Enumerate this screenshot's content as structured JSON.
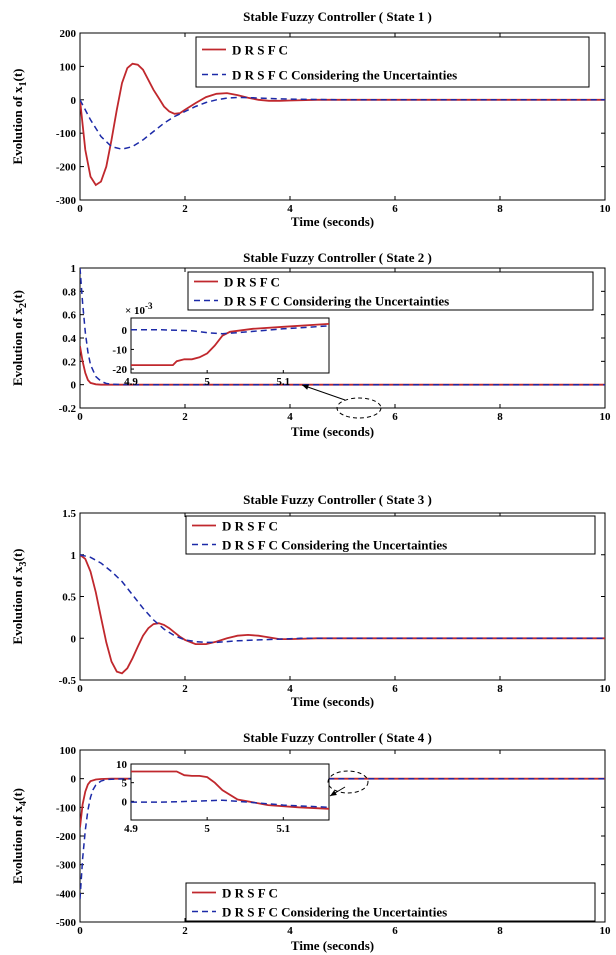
{
  "chart_data": [
    {
      "type": "line",
      "title": "Stable Fuzzy Controller ( State 1 )",
      "xlabel": "Time (seconds)",
      "ylabel": "Evolution of x",
      "ylabel_sub": "1",
      "ylabel_suffix": "(t)",
      "xlim": [
        0,
        10
      ],
      "ylim": [
        -300,
        200
      ],
      "xticks": [
        0,
        2,
        4,
        6,
        8,
        10
      ],
      "yticks": [
        -300,
        -200,
        -100,
        0,
        100,
        200
      ],
      "legend": "top-center",
      "series": [
        {
          "name": "D R S F C",
          "color": "#c0282d",
          "style": "solid",
          "x": [
            0,
            0.1,
            0.2,
            0.3,
            0.4,
            0.5,
            0.6,
            0.7,
            0.8,
            0.9,
            1.0,
            1.1,
            1.2,
            1.3,
            1.4,
            1.5,
            1.6,
            1.7,
            1.8,
            1.9,
            2.0,
            2.2,
            2.4,
            2.6,
            2.8,
            3.0,
            3.2,
            3.4,
            3.6,
            3.8,
            4.0,
            4.5,
            5,
            6,
            7,
            8,
            9,
            10
          ],
          "y": [
            0,
            -150,
            -230,
            -255,
            -245,
            -200,
            -120,
            -30,
            50,
            95,
            108,
            105,
            90,
            60,
            30,
            5,
            -20,
            -35,
            -42,
            -40,
            -30,
            -10,
            8,
            18,
            20,
            14,
            6,
            0,
            -3,
            -3,
            -2,
            0,
            0,
            0,
            0,
            0,
            0,
            0
          ]
        },
        {
          "name": "D R S F C  Considering the Uncertainties",
          "color": "#1c2aa8",
          "style": "dashed",
          "x": [
            0,
            0.2,
            0.4,
            0.6,
            0.8,
            1.0,
            1.2,
            1.4,
            1.6,
            1.8,
            2.0,
            2.2,
            2.4,
            2.6,
            2.8,
            3.0,
            3.3,
            3.6,
            4.0,
            4.5,
            5,
            6,
            7,
            8,
            9,
            10
          ],
          "y": [
            0,
            -60,
            -110,
            -140,
            -148,
            -140,
            -120,
            -95,
            -70,
            -50,
            -35,
            -20,
            -8,
            0,
            5,
            7,
            6,
            4,
            2,
            1,
            0,
            0,
            0,
            0,
            0,
            0
          ]
        }
      ]
    },
    {
      "type": "line",
      "title": "Stable Fuzzy Controller ( State 2 )",
      "xlabel": "Time (seconds)",
      "ylabel": "Evolution of x",
      "ylabel_sub": "2",
      "ylabel_suffix": "(t)",
      "xlim": [
        0,
        10
      ],
      "ylim": [
        -0.2,
        1
      ],
      "xticks": [
        0,
        2,
        4,
        6,
        8,
        10
      ],
      "yticks": [
        -0.2,
        0,
        0.2,
        0.4,
        0.6,
        0.8,
        1
      ],
      "legend": "top-center",
      "series": [
        {
          "name": "D R S F C",
          "color": "#c0282d",
          "style": "solid",
          "x": [
            0,
            0.05,
            0.1,
            0.15,
            0.2,
            0.3,
            0.4,
            0.6,
            1,
            2,
            4,
            6,
            8,
            10
          ],
          "y": [
            0.33,
            0.2,
            0.1,
            0.04,
            0.015,
            0.003,
            0,
            0,
            0,
            0,
            0,
            0,
            0,
            0
          ]
        },
        {
          "name": "D R S F C  Considering the Uncertainties",
          "color": "#1c2aa8",
          "style": "dashed",
          "x": [
            0,
            0.05,
            0.1,
            0.15,
            0.2,
            0.3,
            0.4,
            0.5,
            0.6,
            0.8,
            1,
            2,
            4,
            6,
            8,
            10
          ],
          "y": [
            1,
            0.7,
            0.45,
            0.28,
            0.17,
            0.07,
            0.03,
            0.01,
            0.004,
            0.001,
            0,
            0,
            0,
            0,
            0,
            0
          ]
        }
      ],
      "inset": {
        "exponent_label": "× 10",
        "exponent_power": "-3",
        "xlim": [
          4.9,
          5.16
        ],
        "ylim": [
          -22,
          6
        ],
        "xticks": [
          4.9,
          5,
          5.1
        ],
        "xtick_labels": [
          "4.9",
          "5",
          "5.1"
        ],
        "yticks": [
          -20,
          -10,
          0
        ],
        "series": [
          {
            "x": [
              4.9,
              4.94,
              4.955,
              4.96,
              4.97,
              4.98,
              4.99,
              5.0,
              5.01,
              5.02,
              5.03,
              5.06,
              5.1,
              5.16
            ],
            "y": [
              -18,
              -18,
              -18,
              -16,
              -15,
              -15,
              -14,
              -12,
              -8,
              -3,
              -1,
              0.5,
              1.5,
              3
            ]
          },
          {
            "x": [
              4.9,
              4.94,
              4.98,
              5.0,
              5.02,
              5.04,
              5.06,
              5.1,
              5.16
            ],
            "y": [
              0,
              0,
              -0.5,
              -1.5,
              -2,
              -1.5,
              -0.8,
              0.5,
              2
            ]
          }
        ]
      }
    },
    {
      "type": "line",
      "title": "Stable Fuzzy Controller ( State 3 )",
      "xlabel": "Time (seconds)",
      "ylabel": "Evolution of x",
      "ylabel_sub": "3",
      "ylabel_suffix": "(t)",
      "xlim": [
        0,
        10
      ],
      "ylim": [
        -0.5,
        1.5
      ],
      "xticks": [
        0,
        2,
        4,
        6,
        8,
        10
      ],
      "yticks": [
        -0.5,
        0,
        0.5,
        1,
        1.5
      ],
      "legend": "top-center",
      "series": [
        {
          "name": "D R S F C",
          "color": "#c0282d",
          "style": "solid",
          "x": [
            0,
            0.1,
            0.2,
            0.3,
            0.4,
            0.5,
            0.6,
            0.7,
            0.8,
            0.9,
            1.0,
            1.1,
            1.2,
            1.3,
            1.4,
            1.5,
            1.6,
            1.7,
            1.8,
            1.9,
            2.0,
            2.2,
            2.4,
            2.6,
            2.8,
            3.0,
            3.2,
            3.4,
            3.6,
            3.8,
            4.0,
            4.5,
            5,
            6,
            7,
            8,
            9,
            10
          ],
          "y": [
            1,
            0.95,
            0.8,
            0.55,
            0.25,
            -0.05,
            -0.28,
            -0.4,
            -0.42,
            -0.36,
            -0.24,
            -0.1,
            0.03,
            0.12,
            0.17,
            0.18,
            0.16,
            0.12,
            0.07,
            0.02,
            -0.02,
            -0.07,
            -0.07,
            -0.04,
            0,
            0.03,
            0.04,
            0.03,
            0.01,
            -0.01,
            -0.01,
            0,
            0,
            0,
            0,
            0,
            0,
            0
          ]
        },
        {
          "name": "D R S F C  Considering the Uncertainties",
          "color": "#1c2aa8",
          "style": "dashed",
          "x": [
            0,
            0.2,
            0.4,
            0.6,
            0.8,
            1.0,
            1.2,
            1.4,
            1.6,
            1.8,
            2.0,
            2.2,
            2.4,
            2.6,
            2.8,
            3.0,
            3.4,
            3.8,
            4.2,
            4.6,
            5,
            6,
            7,
            8,
            9,
            10
          ],
          "y": [
            1,
            0.97,
            0.9,
            0.8,
            0.68,
            0.52,
            0.36,
            0.22,
            0.11,
            0.03,
            -0.02,
            -0.04,
            -0.05,
            -0.05,
            -0.04,
            -0.03,
            -0.02,
            -0.01,
            0,
            0,
            0,
            0,
            0,
            0,
            0,
            0
          ]
        }
      ]
    },
    {
      "type": "line",
      "title": "Stable Fuzzy Controller ( State 4 )",
      "xlabel": "Time (seconds)",
      "ylabel": "Evolution of x",
      "ylabel_sub": "4",
      "ylabel_suffix": "(t)",
      "xlim": [
        0,
        10
      ],
      "ylim": [
        -500,
        100
      ],
      "xticks": [
        0,
        2,
        4,
        6,
        8,
        10
      ],
      "yticks": [
        -500,
        -400,
        -300,
        -200,
        -100,
        0,
        100
      ],
      "legend": "bottom-right",
      "series": [
        {
          "name": "D R S F C",
          "color": "#c0282d",
          "style": "solid",
          "x": [
            0,
            0.05,
            0.1,
            0.15,
            0.2,
            0.3,
            0.4,
            0.6,
            1,
            2,
            4,
            6,
            8,
            10
          ],
          "y": [
            -170,
            -90,
            -45,
            -20,
            -9,
            -3,
            -1,
            0,
            0,
            0,
            0,
            0,
            0,
            0
          ]
        },
        {
          "name": "D R S F C  Considering the Uncertainties",
          "color": "#1c2aa8",
          "style": "dashed",
          "x": [
            0,
            0.05,
            0.1,
            0.15,
            0.2,
            0.25,
            0.3,
            0.4,
            0.5,
            0.7,
            1,
            2,
            4,
            6,
            8,
            10
          ],
          "y": [
            -420,
            -280,
            -180,
            -110,
            -65,
            -38,
            -22,
            -8,
            -3,
            -1,
            0,
            0,
            0,
            0,
            0,
            0
          ]
        }
      ],
      "inset": {
        "xlim": [
          4.9,
          5.16
        ],
        "ylim": [
          -5,
          10
        ],
        "xticks": [
          4.9,
          5,
          5.1
        ],
        "xtick_labels": [
          "4.9",
          "5",
          "5.1"
        ],
        "yticks": [
          0,
          5,
          10
        ],
        "series": [
          {
            "x": [
              4.9,
              4.96,
              4.97,
              4.98,
              4.99,
              5.0,
              5.01,
              5.02,
              5.04,
              5.08,
              5.12,
              5.16
            ],
            "y": [
              8,
              8,
              7,
              6.8,
              6.8,
              6.5,
              5,
              3,
              0.5,
              -1,
              -1.6,
              -2
            ]
          },
          {
            "x": [
              4.9,
              4.94,
              4.98,
              5.02,
              5.06,
              5.1,
              5.16
            ],
            "y": [
              -0.2,
              -0.2,
              0,
              0.3,
              -0.3,
              -1,
              -1.6
            ]
          }
        ]
      }
    }
  ]
}
